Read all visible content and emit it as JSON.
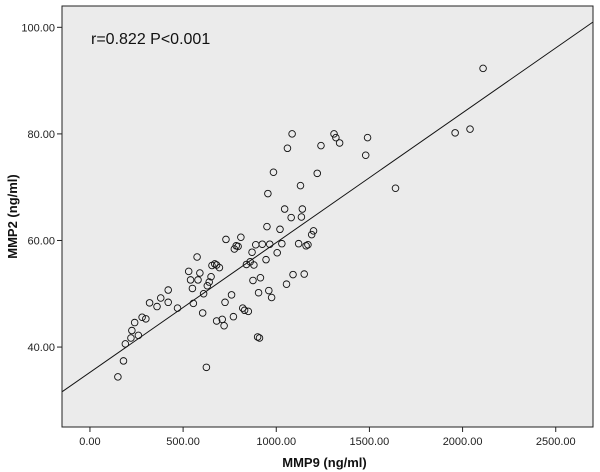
{
  "chart_data": {
    "type": "scatter",
    "title": "",
    "xlabel": "MMP9 (ng/ml)",
    "ylabel": "MMP2 (ng/ml)",
    "annotation": "r=0.822   P<0.001",
    "xlim": [
      -150,
      2700
    ],
    "ylim": [
      25,
      104
    ],
    "grid": false,
    "xticks": [
      0,
      500,
      1000,
      1500,
      2000,
      2500
    ],
    "xtick_labels": [
      "0.00",
      "500.00",
      "1000.00",
      "1500.00",
      "2000.00",
      "2500.00"
    ],
    "yticks": [
      40,
      60,
      80,
      100
    ],
    "ytick_labels": [
      "40.00",
      "60.00",
      "80.00",
      "100.00"
    ],
    "plot_background": "#ebebeb",
    "fit_line": {
      "x": [
        -150,
        2700
      ],
      "y": [
        31.6,
        101.0
      ]
    },
    "points": [
      [
        150,
        34.4
      ],
      [
        180,
        37.4
      ],
      [
        190,
        40.6
      ],
      [
        220,
        41.7
      ],
      [
        225,
        43.1
      ],
      [
        240,
        44.6
      ],
      [
        260,
        42.2
      ],
      [
        280,
        45.6
      ],
      [
        300,
        45.3
      ],
      [
        320,
        48.3
      ],
      [
        360,
        47.6
      ],
      [
        380,
        49.2
      ],
      [
        420,
        48.4
      ],
      [
        420,
        50.7
      ],
      [
        470,
        47.3
      ],
      [
        530,
        54.2
      ],
      [
        540,
        52.6
      ],
      [
        550,
        51.0
      ],
      [
        555,
        48.2
      ],
      [
        575,
        56.9
      ],
      [
        580,
        52.6
      ],
      [
        590,
        53.9
      ],
      [
        605,
        46.4
      ],
      [
        610,
        50.0
      ],
      [
        625,
        36.2
      ],
      [
        630,
        51.5
      ],
      [
        640,
        52.2
      ],
      [
        650,
        53.2
      ],
      [
        655,
        55.3
      ],
      [
        670,
        55.6
      ],
      [
        680,
        44.9
      ],
      [
        680,
        55.4
      ],
      [
        695,
        54.9
      ],
      [
        710,
        45.2
      ],
      [
        720,
        44.0
      ],
      [
        725,
        48.4
      ],
      [
        730,
        60.2
      ],
      [
        760,
        49.8
      ],
      [
        770,
        45.7
      ],
      [
        775,
        58.4
      ],
      [
        785,
        59.0
      ],
      [
        795,
        58.9
      ],
      [
        810,
        60.6
      ],
      [
        820,
        47.3
      ],
      [
        830,
        46.9
      ],
      [
        840,
        55.5
      ],
      [
        850,
        46.7
      ],
      [
        860,
        56.0
      ],
      [
        870,
        57.8
      ],
      [
        875,
        52.5
      ],
      [
        880,
        55.4
      ],
      [
        890,
        59.2
      ],
      [
        900,
        41.9
      ],
      [
        905,
        50.2
      ],
      [
        910,
        41.7
      ],
      [
        915,
        53.0
      ],
      [
        925,
        59.3
      ],
      [
        945,
        56.4
      ],
      [
        950,
        62.6
      ],
      [
        955,
        68.8
      ],
      [
        960,
        50.6
      ],
      [
        965,
        59.3
      ],
      [
        975,
        49.3
      ],
      [
        985,
        72.8
      ],
      [
        1005,
        57.7
      ],
      [
        1020,
        62.1
      ],
      [
        1030,
        59.4
      ],
      [
        1045,
        65.9
      ],
      [
        1055,
        51.8
      ],
      [
        1060,
        77.3
      ],
      [
        1080,
        64.3
      ],
      [
        1085,
        80.0
      ],
      [
        1090,
        53.6
      ],
      [
        1120,
        59.4
      ],
      [
        1130,
        70.3
      ],
      [
        1135,
        64.4
      ],
      [
        1140,
        65.9
      ],
      [
        1150,
        53.7
      ],
      [
        1160,
        59.0
      ],
      [
        1170,
        59.2
      ],
      [
        1190,
        61.1
      ],
      [
        1200,
        61.8
      ],
      [
        1220,
        72.6
      ],
      [
        1240,
        77.8
      ],
      [
        1310,
        80.0
      ],
      [
        1320,
        79.3
      ],
      [
        1340,
        78.3
      ],
      [
        1480,
        76.0
      ],
      [
        1490,
        79.3
      ],
      [
        1640,
        69.8
      ],
      [
        1960,
        80.2
      ],
      [
        2040,
        80.9
      ],
      [
        2110,
        92.3
      ]
    ]
  }
}
